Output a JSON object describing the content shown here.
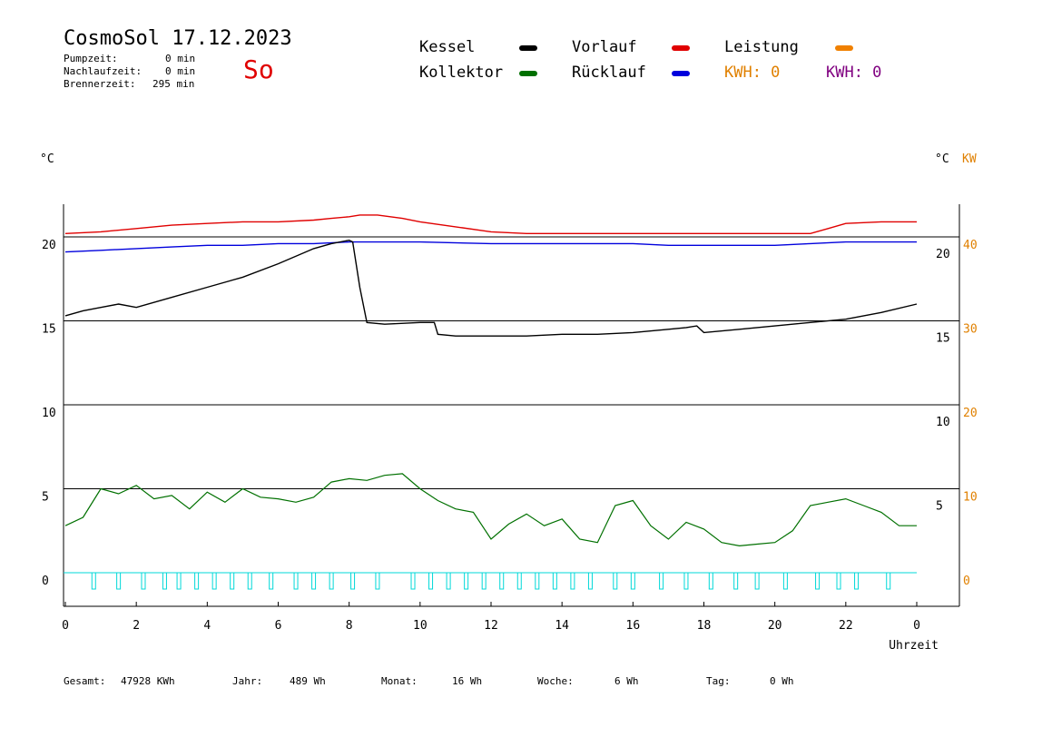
{
  "header": {
    "title": "CosmoSol 17.12.2023",
    "pump_label": "Pumpzeit:",
    "pump_value": "0 min",
    "nachlauf_label": "Nachlaufzeit:",
    "nachlauf_value": "0 min",
    "brenner_label": "Brennerzeit:",
    "brenner_value": "295 min",
    "weekday": "So"
  },
  "legend": {
    "kessel": "Kessel",
    "kollektor": "Kollektor",
    "vorlauf": "Vorlauf",
    "ruecklauf": "Rücklauf",
    "leistung": "Leistung",
    "kwh1": "KWH: 0",
    "kwh2": "KWH: 0"
  },
  "units": {
    "left": "°C",
    "right_c": "°C",
    "right_kw": "KW"
  },
  "footer": {
    "gesamt_label": "Gesamt:",
    "gesamt_value": "47928 KWh",
    "jahr_label": "Jahr:",
    "jahr_value": "489 Wh",
    "monat_label": "Monat:",
    "monat_value": "16 Wh",
    "woche_label": "Woche:",
    "woche_value": "6 Wh",
    "tag_label": "Tag:",
    "tag_value": "0 Wh"
  },
  "colors": {
    "kessel": "#000000",
    "kollektor": "#007000",
    "vorlauf": "#e00000",
    "ruecklauf": "#0000dd",
    "leistung": "#f08000",
    "pump": "#00d8d8",
    "kw_axis": "#e08000",
    "kwh2": "#800080"
  },
  "chart_data": {
    "type": "line",
    "xlabel": "Uhrzeit",
    "x_ticks": [
      "0",
      "2",
      "4",
      "6",
      "8",
      "10",
      "12",
      "14",
      "16",
      "18",
      "20",
      "22",
      "0"
    ],
    "y_ticks_left": [
      "0",
      "5",
      "10",
      "15",
      "20"
    ],
    "y_ticks_right_c": [
      "5",
      "10",
      "15",
      "20"
    ],
    "y_ticks_right_kw": [
      "0",
      "10",
      "20",
      "30",
      "40"
    ],
    "xlim": [
      0,
      24
    ],
    "ylim_left": [
      0,
      20
    ],
    "series": [
      {
        "name": "Vorlauf",
        "x": [
          0,
          1,
          2,
          3,
          4,
          5,
          6,
          7,
          7.5,
          8,
          8.3,
          8.8,
          9.5,
          10,
          11,
          12,
          13,
          14,
          15,
          16,
          17,
          18,
          19,
          20,
          21,
          21.5,
          22,
          23,
          24
        ],
        "y": [
          20.2,
          20.3,
          20.5,
          20.7,
          20.8,
          20.9,
          20.9,
          21.0,
          21.1,
          21.2,
          21.3,
          21.3,
          21.1,
          20.9,
          20.6,
          20.3,
          20.2,
          20.2,
          20.2,
          20.2,
          20.2,
          20.2,
          20.2,
          20.2,
          20.2,
          20.5,
          20.8,
          20.9,
          20.9
        ]
      },
      {
        "name": "Rücklauf",
        "x": [
          0,
          1,
          2,
          3,
          4,
          5,
          6,
          7,
          8,
          9,
          10,
          12,
          14,
          16,
          17,
          18,
          20,
          21,
          22,
          24
        ],
        "y": [
          19.1,
          19.2,
          19.3,
          19.4,
          19.5,
          19.5,
          19.6,
          19.6,
          19.7,
          19.7,
          19.7,
          19.6,
          19.6,
          19.6,
          19.5,
          19.5,
          19.5,
          19.6,
          19.7,
          19.7
        ]
      },
      {
        "name": "Kessel",
        "x": [
          0,
          0.5,
          1,
          1.5,
          2,
          3,
          4,
          5,
          6,
          7,
          7.5,
          8,
          8.1,
          8.3,
          8.5,
          9,
          10,
          10.4,
          10.5,
          11,
          12,
          13,
          14,
          15,
          16,
          17,
          17.5,
          17.8,
          18,
          19,
          20,
          21,
          22,
          23,
          24
        ],
        "y": [
          15.3,
          15.6,
          15.8,
          16.0,
          15.8,
          16.4,
          17.0,
          17.6,
          18.4,
          19.3,
          19.6,
          19.8,
          19.7,
          17.0,
          14.9,
          14.8,
          14.9,
          14.9,
          14.2,
          14.1,
          14.1,
          14.1,
          14.2,
          14.2,
          14.3,
          14.5,
          14.6,
          14.7,
          14.3,
          14.5,
          14.7,
          14.9,
          15.1,
          15.5,
          16.0
        ]
      },
      {
        "name": "Kollektor",
        "x": [
          0,
          0.5,
          1,
          1.5,
          2,
          2.5,
          3,
          3.5,
          4,
          4.5,
          5,
          5.5,
          6,
          6.5,
          7,
          7.5,
          8,
          8.5,
          9,
          9.5,
          10,
          10.5,
          11,
          11.5,
          12,
          12.5,
          13,
          13.5,
          14,
          14.5,
          15,
          15.5,
          16,
          16.5,
          17,
          17.5,
          18,
          18.5,
          19,
          19.5,
          20,
          20.5,
          21,
          21.5,
          22,
          22.5,
          23,
          23.5,
          24
        ],
        "y": [
          2.8,
          3.3,
          5.0,
          4.7,
          5.2,
          4.4,
          4.6,
          3.8,
          4.8,
          4.2,
          5.0,
          4.5,
          4.4,
          4.2,
          4.5,
          5.4,
          5.6,
          5.5,
          5.8,
          5.9,
          5.0,
          4.3,
          3.8,
          3.6,
          2.0,
          2.9,
          3.5,
          2.8,
          3.2,
          2.0,
          1.8,
          4.0,
          4.3,
          2.8,
          2.0,
          3.0,
          2.6,
          1.8,
          1.6,
          1.7,
          1.8,
          2.5,
          4.0,
          4.2,
          4.4,
          4.0,
          3.6,
          2.8,
          2.8
        ]
      },
      {
        "name": "Leistung",
        "x": [
          0,
          24
        ],
        "y": [
          0,
          0
        ]
      }
    ],
    "pump_pulses_x": [
      0.8,
      1.5,
      2.2,
      2.8,
      3.2,
      3.7,
      4.2,
      4.7,
      5.2,
      5.8,
      6.5,
      7.0,
      7.5,
      8.1,
      8.8,
      9.8,
      10.3,
      10.8,
      11.3,
      11.8,
      12.3,
      12.8,
      13.3,
      13.8,
      14.3,
      14.8,
      15.5,
      16.0,
      16.8,
      17.5,
      18.2,
      18.9,
      19.5,
      20.3,
      21.2,
      21.8,
      22.3,
      23.2
    ],
    "grid": true
  }
}
